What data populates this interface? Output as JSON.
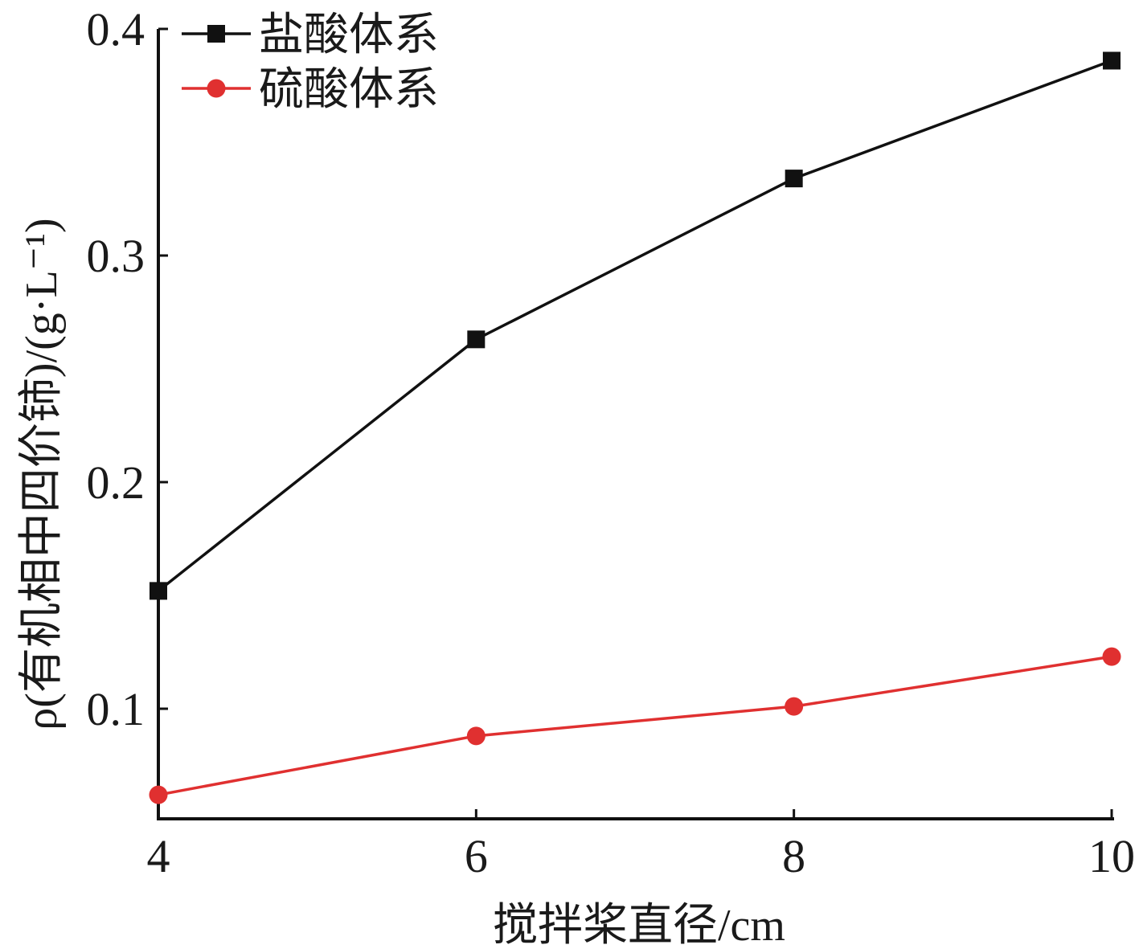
{
  "chart_data": {
    "type": "line",
    "x": [
      4,
      6,
      8,
      10
    ],
    "xlabel": "搅拌桨直径/cm",
    "ylabel": "ρ(有机相中四价铈)/(g·L⁻¹)",
    "xlim": [
      4,
      10
    ],
    "ylim": [
      0.05,
      0.4
    ],
    "xticks": [
      "4",
      "6",
      "8",
      "10"
    ],
    "yticks": [
      "0.1",
      "0.2",
      "0.3",
      "0.4"
    ],
    "grid": false,
    "legend_position": "top-left",
    "series": [
      {
        "name": "盐酸体系",
        "values": [
          0.152,
          0.263,
          0.334,
          0.386
        ],
        "color": "#111111",
        "marker": "square"
      },
      {
        "name": "硫酸体系",
        "values": [
          0.062,
          0.088,
          0.101,
          0.123
        ],
        "color": "#e03030",
        "marker": "circle"
      }
    ]
  }
}
